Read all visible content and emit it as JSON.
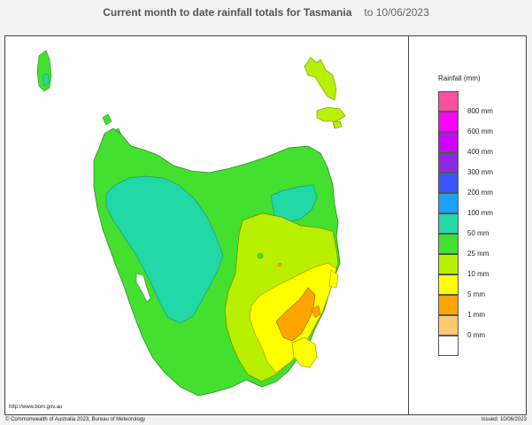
{
  "header": {
    "title": "Current month to date rainfall totals for Tasmania",
    "date": "to 10/06/2023"
  },
  "legend": {
    "title": "Rainfall (mm)",
    "items": [
      {
        "label": "",
        "color": "#ff4fa0"
      },
      {
        "label": "800 mm",
        "color": "#ff00ff"
      },
      {
        "label": "600 mm",
        "color": "#cc00ff"
      },
      {
        "label": "400 mm",
        "color": "#8a2be2"
      },
      {
        "label": "300 mm",
        "color": "#3a55ff"
      },
      {
        "label": "200 mm",
        "color": "#1ea0ff"
      },
      {
        "label": "100 mm",
        "color": "#22d8a6"
      },
      {
        "label": "50 mm",
        "color": "#44e030"
      },
      {
        "label": "25 mm",
        "color": "#b8f000"
      },
      {
        "label": "10 mm",
        "color": "#ffff00"
      },
      {
        "label": "5 mm",
        "color": "#ffa500"
      },
      {
        "label": "1 mm",
        "color": "#ffc870"
      },
      {
        "label": "0 mm",
        "color": "#ffffff"
      }
    ]
  },
  "map": {
    "url": "http://www.bom.gov.au",
    "zone_colors": {
      "green": "#44e030",
      "teal": "#22d8a6",
      "lime": "#b8f000",
      "yellow": "#ffff00",
      "orange": "#ffa500"
    }
  },
  "footer": {
    "copyright": "© Commonwealth of Australia 2023, Bureau of Meteorology",
    "issued": "Issued: 10/06/2023"
  }
}
